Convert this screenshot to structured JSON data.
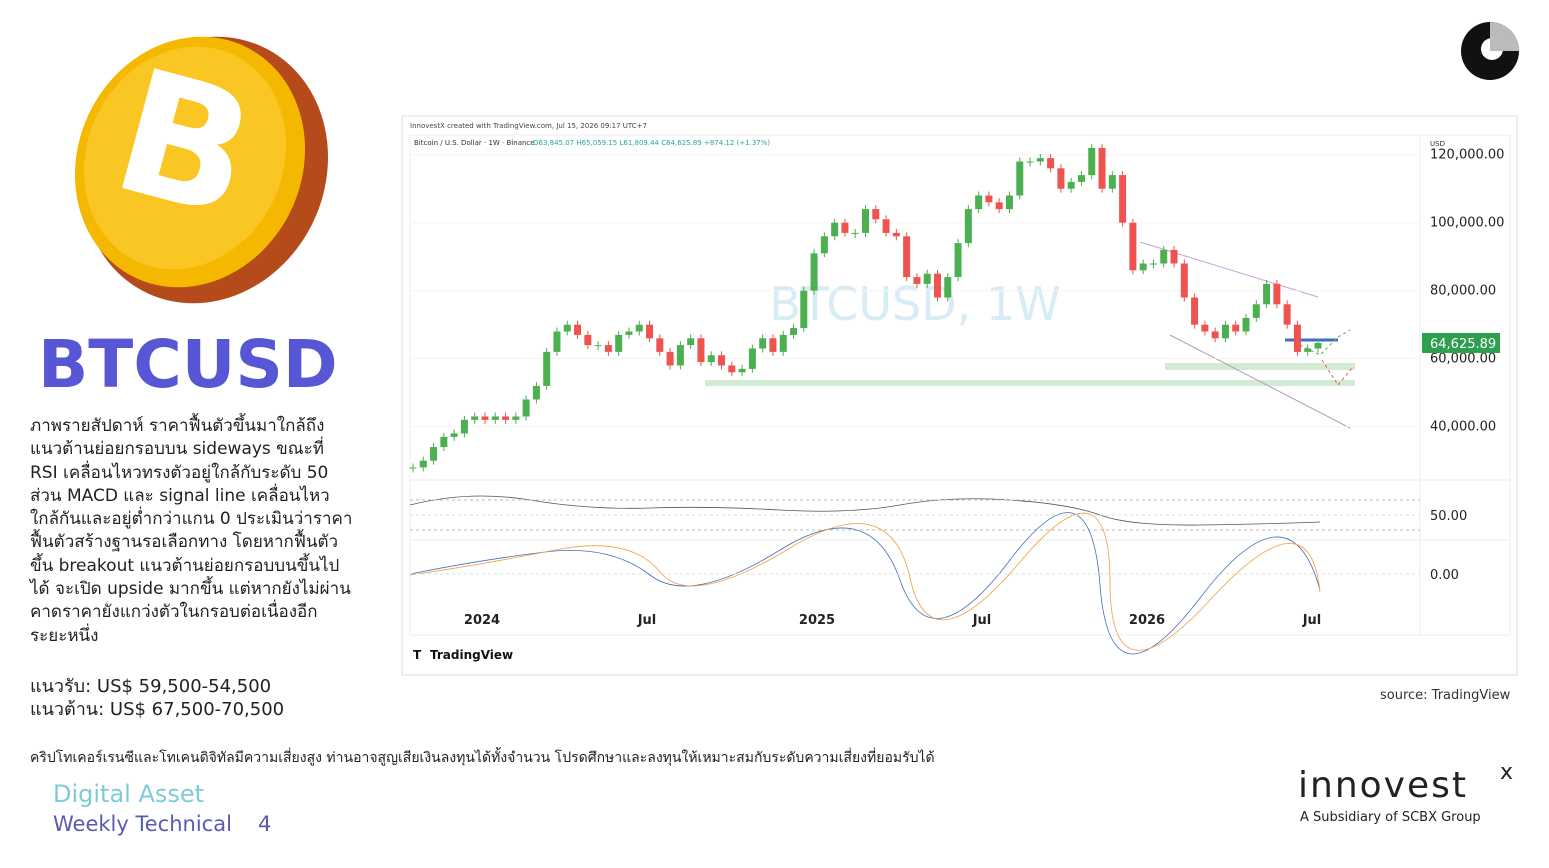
{
  "slide": {
    "title": "BTCUSD",
    "paragraph": [
      "ภาพรายสัปดาห์ ราคาฟื้นตัวขึ้นมาใกล้ถึง",
      "แนวต้านย่อยกรอบบน sideways ขณะที่",
      "RSI เคลื่อนไหวทรงตัวอยู่ใกล้กับระดับ 50",
      "ส่วน MACD และ signal line เคลื่อนไหว",
      "ใกล้กันและอยู่ต่ำกว่าแกน 0 ประเมินว่าราคา",
      "ฟื้นตัวสร้างฐานรอเลือกทาง โดยหากฟื้นตัว",
      "ขึ้น breakout แนวต้านย่อยกรอบบนขึ้นไป",
      "ได้ จะเปิด upside มากขึ้น แต่หากยังไม่ผ่าน",
      "คาดราคายังแกว่งตัวในกรอบต่อเนื่องอีก",
      "ระยะหนึ่ง"
    ],
    "support": "แนวรับ: US$ 59,500-54,500",
    "resistance": "แนวต้าน: US$ 67,500-70,500",
    "disclaimer": "คริปโทเคอร์เรนซีและโทเคนดิจิทัลมีความเสี่ยงสูง ท่านอาจสูญเสียเงินลงทุนได้ทั้งจำนวน โปรดศึกษาและลงทุนให้เหมาะสมกับระดับความเสี่ยงที่ยอมรับได้",
    "footer_title": "Digital Asset",
    "footer_subtitle": "Weekly Technical",
    "page_number": "4",
    "source": "source: TradingView",
    "brand": "innovest",
    "brand_sup": "x",
    "brand_sub": "A Subsidiary of SCBX Group"
  },
  "chart_data": {
    "type": "candlestick",
    "header": "InnovestX created with TradingView.com, Jul 15, 2026 09:17 UTC+7",
    "legend": "Bitcoin / U.S. Dollar · 1W · Binance",
    "ohlc_text": "O63,845.07 H65,059.15 L61,809.44 C64,625.89 +874.12 (+1.37%)",
    "currency": "USD",
    "watermark": "BTCUSD, 1W",
    "platform": "TradingView",
    "x_labels": [
      "2024",
      "Jul",
      "2025",
      "Jul",
      "2026",
      "Jul"
    ],
    "closes": [
      28000,
      30000,
      34000,
      37000,
      38000,
      42000,
      43000,
      42000,
      43000,
      42000,
      43000,
      48000,
      52000,
      62000,
      68000,
      70000,
      67000,
      64000,
      64000,
      62000,
      67000,
      68000,
      70000,
      66000,
      62000,
      58000,
      64000,
      66000,
      59000,
      61000,
      58000,
      56000,
      57000,
      63000,
      66000,
      62000,
      67000,
      69000,
      80000,
      91000,
      96000,
      100000,
      97000,
      97000,
      104000,
      101000,
      97000,
      96000,
      84000,
      82000,
      85000,
      78000,
      84000,
      94000,
      104000,
      108000,
      106000,
      104000,
      108000,
      118000,
      118000,
      119000,
      116000,
      110000,
      112000,
      114000,
      122000,
      110000,
      114000,
      100000,
      86000,
      88000,
      88000,
      92000,
      88000,
      78000,
      70000,
      68000,
      66000,
      70000,
      68000,
      72000,
      76000,
      82000,
      76000,
      70000,
      62000,
      63000,
      64625.89
    ],
    "last_price_label": "64,625.89",
    "ylim": [
      24900,
      125800
    ],
    "yticks": [
      {
        "value": 120000,
        "label": "120,000.00"
      },
      {
        "value": 100000,
        "label": "100,000.00"
      },
      {
        "value": 80000,
        "label": "80,000.00"
      },
      {
        "value": 60000,
        "label": "60,000.00"
      },
      {
        "value": 40000,
        "label": "40,000.00"
      }
    ],
    "rsi_ticks": [
      {
        "value": 50,
        "label": "50.00"
      }
    ],
    "macd_ticks": [
      {
        "value": 0,
        "label": "0.00"
      }
    ]
  }
}
